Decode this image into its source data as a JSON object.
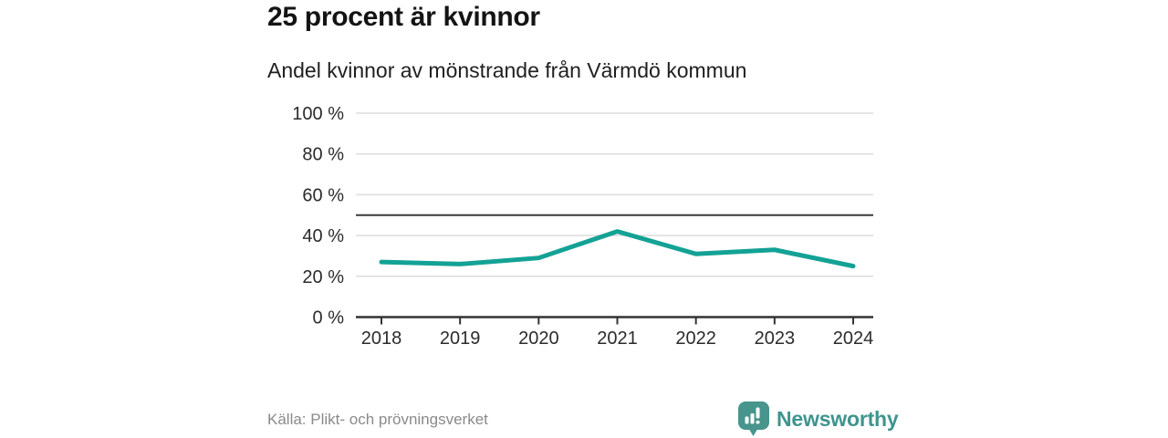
{
  "header": {
    "title": "25 procent är kvinnor",
    "subtitle": "Andel kvinnor av mönstrande från Värmdö kommun"
  },
  "chart_data": {
    "type": "line",
    "title": "25 procent är kvinnor",
    "subtitle": "Andel kvinnor av mönstrande från Värmdö kommun",
    "categories": [
      "2018",
      "2019",
      "2020",
      "2021",
      "2022",
      "2023",
      "2024"
    ],
    "series": [
      {
        "name": "Andel kvinnor av mönstrande",
        "values": [
          27,
          26,
          29,
          42,
          31,
          33,
          25
        ]
      }
    ],
    "unit": "%",
    "ylim": [
      0,
      100
    ],
    "yticks": [
      0,
      20,
      40,
      60,
      80,
      100
    ],
    "ytick_label_format": "{v} %",
    "reference_line_value": 50,
    "grid": true,
    "legend": "none",
    "colors": {
      "line": "#13a295",
      "grid": "#dddddd",
      "axis": "#333333",
      "reference": "#3a3a3a",
      "tick_label": "#2b2b2b"
    }
  },
  "footer": {
    "source": "Källa: Plikt- och prövningsverket",
    "brand": "Newsworthy",
    "brand_color": "#3f948e",
    "logo_icon": "bar-chart-speech-bubble-icon"
  }
}
